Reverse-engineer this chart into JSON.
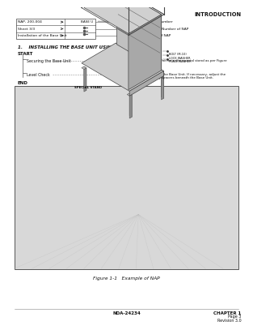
{
  "bg_color": "#ffffff",
  "header_text": "INTRODUCTION",
  "footer_center": "NDA-24234",
  "footer_right_line1": "CHAPTER 1",
  "footer_right_line2": "Page 3",
  "footer_right_line3": "Revision 3.0",
  "nap_table_rows": [
    {
      "label": "NAP- 200-004",
      "desc": "NAP Number"
    },
    {
      "label": "Sheet 3/3",
      "desc": "Sheet Number of NAP"
    },
    {
      "label": "Installation of the Base Unit",
      "desc": "Title of NAP"
    }
  ],
  "section_title": "1.    INSTALLING THE BASE UNIT USING A SPECIAL STAND",
  "flow_start": "START",
  "flow_end": "END",
  "flow_steps": [
    {
      "name": "Securing the Base Unit",
      "desc": "Secure the Base Unit onto the special stand as per Figure\n004-4."
    },
    {
      "name": "Level Check",
      "desc": "Check the level of the Base Unit. If necessary, adjust the\nlevel by inserting spacers beneath the Base Unit."
    }
  ],
  "figure_caption": "Figure 1-1   Example of NAP",
  "label_base_unit": "BASE U",
  "label_special_stand": "SPECIAL STAND",
  "label_bolt": "BOLT (M-10)",
  "label_lock_washer": "LOCK WASHER",
  "label_plain_washer": "PLAIN WASHER",
  "diag_bg": "#e0e0e0",
  "diag_edge": "#555555"
}
